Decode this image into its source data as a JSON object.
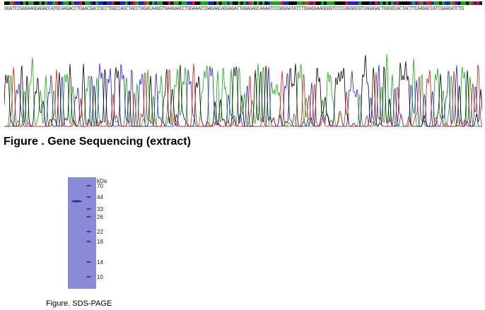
{
  "sequencing": {
    "sequence_text": "GGATCCGAGAAGGAGACCATGCAAGACCTGAACGACCGCCTGGCCAGCTACCTAGACAAGGTGAAGAACCTGGAAACCGAGAACAGGAGACTAGAGAGCAAAATCCGGGAATATCTGGAGAAAGGGGTCCCCAGGGCGTCAGAGACTGGGGCACTACTTCAAGACCATCGAAGATCTG",
    "caption": "Figure . Gene Sequencing (extract)",
    "trace_colors": {
      "A": "#1aa51a",
      "C": "#2020c8",
      "G": "#000000",
      "T": "#d01c1c"
    }
  },
  "sds_page": {
    "units_label": "kDa",
    "caption": "Figure. SDS-PAGE",
    "markers": [
      {
        "label": "70"
      },
      {
        "label": "44"
      },
      {
        "label": "33"
      },
      {
        "label": "26"
      },
      {
        "label": "22"
      },
      {
        "label": "18"
      },
      {
        "label": "14"
      },
      {
        "label": "10"
      }
    ],
    "gel_color": "#8a8ad6",
    "band_color": "#2a2f9a"
  }
}
